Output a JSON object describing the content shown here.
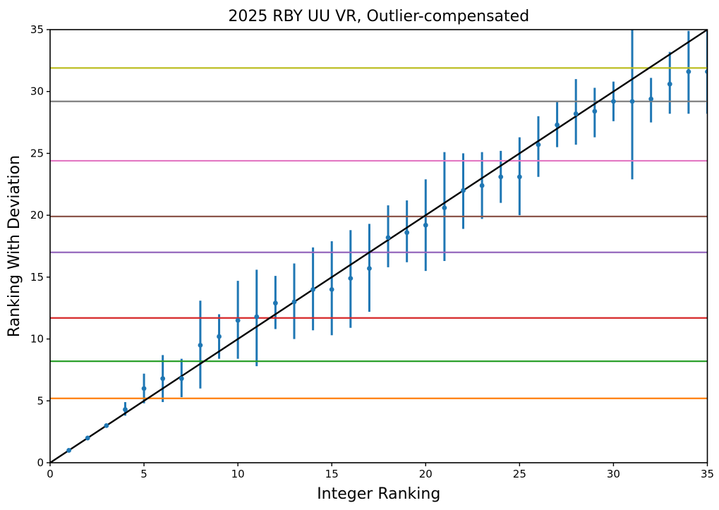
{
  "figure": {
    "background_color": "#ffffff",
    "spine_color": "#000000"
  },
  "chart_data": {
    "type": "scatter",
    "title": "2025 RBY UU VR, Outlier-compensated",
    "xlabel": "Integer Ranking",
    "ylabel": "Ranking With Deviation",
    "xlim": [
      0,
      35
    ],
    "ylim": [
      0,
      35
    ],
    "x_ticks": [
      0,
      5,
      10,
      15,
      20,
      25,
      30,
      35
    ],
    "y_ticks": [
      0,
      5,
      10,
      15,
      20,
      25,
      30,
      35
    ],
    "grid": false,
    "legend": "none",
    "identity_line": {
      "name": "identity-line",
      "from": [
        0,
        0
      ],
      "to": [
        35,
        35
      ],
      "color": "#000000"
    },
    "tier_lines": [
      {
        "name": "orange-tier-line",
        "y": 5.2,
        "color": "#ff7f0e"
      },
      {
        "name": "green-tier-line",
        "y": 8.2,
        "color": "#2ca02c"
      },
      {
        "name": "red-tier-line",
        "y": 11.7,
        "color": "#d62728"
      },
      {
        "name": "purple-tier-line",
        "y": 17.0,
        "color": "#9467bd"
      },
      {
        "name": "brown-tier-line",
        "y": 19.9,
        "color": "#8c564b"
      },
      {
        "name": "pink-tier-line",
        "y": 24.4,
        "color": "#e377c2"
      },
      {
        "name": "gray-tier-line",
        "y": 29.2,
        "color": "#7f7f7f"
      },
      {
        "name": "olive-tier-line",
        "y": 31.9,
        "color": "#bcbd22"
      }
    ],
    "series": [
      {
        "name": "ranking-with-deviation",
        "marker": "circle",
        "marker_color": "#1f77b4",
        "errorbar_color": "#1f77b4",
        "x": [
          1,
          2,
          3,
          4,
          5,
          6,
          7,
          8,
          9,
          10,
          11,
          12,
          13,
          14,
          15,
          16,
          17,
          18,
          19,
          20,
          21,
          22,
          23,
          24,
          25,
          26,
          27,
          28,
          29,
          30,
          31,
          32,
          33,
          34,
          35
        ],
        "y": [
          1.0,
          2.0,
          3.0,
          4.3,
          6.0,
          6.8,
          6.8,
          9.5,
          10.2,
          11.5,
          11.8,
          12.9,
          13.0,
          14.0,
          14.0,
          14.9,
          15.7,
          18.2,
          18.6,
          19.2,
          20.6,
          22.0,
          22.4,
          23.1,
          23.1,
          25.7,
          27.3,
          28.2,
          28.4,
          29.2,
          29.2,
          29.4,
          30.6,
          31.6,
          31.6
        ],
        "err_low": [
          1.0,
          2.0,
          3.0,
          3.8,
          4.8,
          4.9,
          5.3,
          6.0,
          8.4,
          8.4,
          7.8,
          10.8,
          10.0,
          10.7,
          10.3,
          10.9,
          12.2,
          15.8,
          16.2,
          15.5,
          16.3,
          18.9,
          19.7,
          21.0,
          20.0,
          23.1,
          25.5,
          25.7,
          26.3,
          27.6,
          22.9,
          27.5,
          28.2,
          28.2,
          28.2
        ],
        "err_high": [
          1.0,
          2.0,
          3.0,
          4.9,
          7.2,
          8.7,
          8.4,
          13.1,
          12.0,
          14.7,
          15.6,
          15.1,
          16.1,
          17.4,
          17.9,
          18.8,
          19.3,
          20.8,
          21.2,
          22.9,
          25.1,
          25.0,
          25.1,
          25.2,
          26.3,
          28.0,
          29.2,
          31.0,
          30.3,
          30.8,
          35.5,
          31.1,
          33.2,
          34.9,
          34.9
        ]
      }
    ]
  }
}
